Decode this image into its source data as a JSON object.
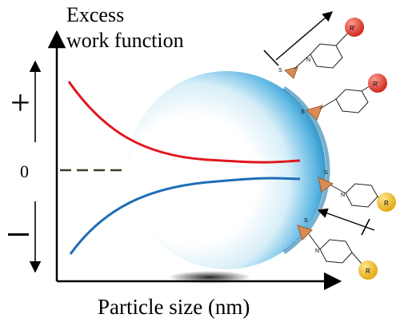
{
  "y_axis_title_line1": "Excess",
  "y_axis_title_line2": "work function",
  "x_axis_title": "Particle size (nm)",
  "plus_sign": "+",
  "minus_sign": "—",
  "zero_label": "0",
  "ligand_label_upper": "R'",
  "ligand_label_lower": "R",
  "sulfur_label": "S",
  "nitrogen_label": "N",
  "colors": {
    "red_curve": "#e0161d",
    "blue_curve": "#1f6db6",
    "dash_line": "#3d3b2a",
    "particle_edge": "#1b7fb0",
    "red_ball": "#e84236",
    "yellow_ball": "#f2c234",
    "triangle": "#d98b55"
  }
}
